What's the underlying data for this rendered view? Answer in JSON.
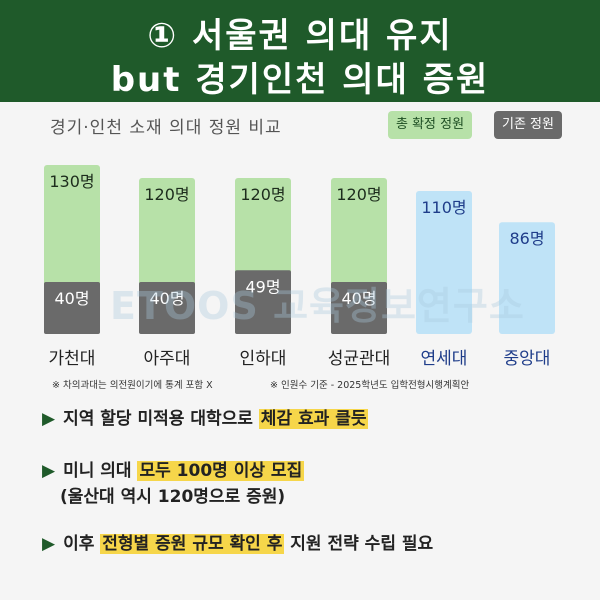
{
  "header": {
    "line1": "① 서울권 의대 유지",
    "line2": "but 경기인천 의대 증원"
  },
  "legend": {
    "total_label": "총 확정 정원",
    "base_label": "기존 정원"
  },
  "watermark": "ETOOS 교육정보연구소",
  "colors": {
    "header_bg": "#1f5a2a",
    "total_bar": "#b7e1a8",
    "base_bar": "#6a6a6a",
    "seoul_bar": "#bfe3f7",
    "seoul_text": "#1f3d8a",
    "highlight": "#f6d64a"
  },
  "chart_data": {
    "type": "bar",
    "title": "경기·인천 소재 의대 정원 비교",
    "categories": [
      "가천대",
      "아주대",
      "인하대",
      "성균관대",
      "연세대",
      "중앙대"
    ],
    "series": [
      {
        "name": "총 확정 정원",
        "values": [
          130,
          120,
          120,
          120,
          null,
          null
        ]
      },
      {
        "name": "기존 정원",
        "values": [
          40,
          40,
          49,
          40,
          110,
          86
        ]
      }
    ],
    "value_labels_total": [
      "130명",
      "120명",
      "120명",
      "120명",
      "110명",
      "86명"
    ],
    "value_labels_base": [
      "40명",
      "40명",
      "49명",
      "40명",
      "",
      ""
    ],
    "seoul_schools": [
      "연세대",
      "중앙대"
    ],
    "ylim": [
      0,
      140
    ]
  },
  "footnotes": {
    "note1": "※ 차의과대는 의전원이기에 통계 포함 X",
    "note2": "※ 인원수 기준 - 2025학년도 입학전형시행계획안"
  },
  "bullets": {
    "b1_prefix": "지역 할당 미적용 대학으로 ",
    "b1_highlight": "체감 효과 클듯",
    "b2_prefix": "미니 의대 ",
    "b2_highlight": "모두 100명 이상 모집",
    "b2_line2": "(울산대 역시 120명으로 증원)",
    "b3_prefix": "이후 ",
    "b3_highlight": "전형별 증원 규모 확인 후",
    "b3_suffix": " 지원 전략 수립 필요",
    "arrow": "▶"
  }
}
